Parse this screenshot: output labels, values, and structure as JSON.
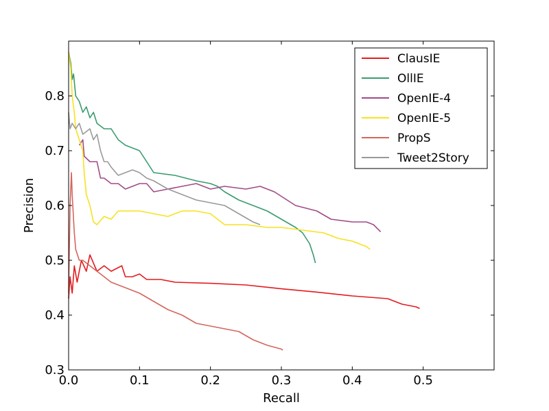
{
  "chart_data": {
    "type": "line",
    "title": "",
    "xlabel": "Recall",
    "ylabel": "Precision",
    "xlim": [
      0.0,
      0.6
    ],
    "ylim": [
      0.3,
      0.9
    ],
    "xticks": [
      0.0,
      0.1,
      0.2,
      0.3,
      0.4,
      0.5
    ],
    "yticks": [
      0.3,
      0.4,
      0.5,
      0.6,
      0.7,
      0.8
    ],
    "xtick_labels": [
      "0.0",
      "0.1",
      "0.2",
      "0.3",
      "0.4",
      "0.5"
    ],
    "ytick_labels": [
      "0.3",
      "0.4",
      "0.5",
      "0.6",
      "0.7",
      "0.8"
    ],
    "grid": false,
    "legend_position": "top-right",
    "series": [
      {
        "name": "ClausIE",
        "color": "#e41a1c",
        "points": [
          [
            0.0,
            0.43
          ],
          [
            0.002,
            0.47
          ],
          [
            0.005,
            0.44
          ],
          [
            0.008,
            0.49
          ],
          [
            0.012,
            0.46
          ],
          [
            0.018,
            0.5
          ],
          [
            0.025,
            0.48
          ],
          [
            0.03,
            0.51
          ],
          [
            0.04,
            0.48
          ],
          [
            0.05,
            0.49
          ],
          [
            0.06,
            0.48
          ],
          [
            0.075,
            0.49
          ],
          [
            0.08,
            0.47
          ],
          [
            0.09,
            0.47
          ],
          [
            0.1,
            0.475
          ],
          [
            0.11,
            0.465
          ],
          [
            0.13,
            0.465
          ],
          [
            0.15,
            0.46
          ],
          [
            0.2,
            0.458
          ],
          [
            0.25,
            0.455
          ],
          [
            0.3,
            0.448
          ],
          [
            0.35,
            0.442
          ],
          [
            0.4,
            0.435
          ],
          [
            0.45,
            0.43
          ],
          [
            0.47,
            0.42
          ],
          [
            0.49,
            0.415
          ],
          [
            0.495,
            0.412
          ]
        ]
      },
      {
        "name": "OllIE",
        "color": "#3a9a6e",
        "points": [
          [
            0.0,
            0.88
          ],
          [
            0.003,
            0.86
          ],
          [
            0.005,
            0.83
          ],
          [
            0.007,
            0.84
          ],
          [
            0.01,
            0.8
          ],
          [
            0.015,
            0.79
          ],
          [
            0.02,
            0.77
          ],
          [
            0.025,
            0.78
          ],
          [
            0.03,
            0.76
          ],
          [
            0.035,
            0.77
          ],
          [
            0.04,
            0.75
          ],
          [
            0.05,
            0.74
          ],
          [
            0.06,
            0.74
          ],
          [
            0.07,
            0.72
          ],
          [
            0.08,
            0.71
          ],
          [
            0.1,
            0.7
          ],
          [
            0.11,
            0.68
          ],
          [
            0.12,
            0.66
          ],
          [
            0.15,
            0.655
          ],
          [
            0.18,
            0.645
          ],
          [
            0.2,
            0.64
          ],
          [
            0.21,
            0.635
          ],
          [
            0.22,
            0.625
          ],
          [
            0.24,
            0.61
          ],
          [
            0.26,
            0.6
          ],
          [
            0.28,
            0.59
          ],
          [
            0.3,
            0.575
          ],
          [
            0.32,
            0.56
          ],
          [
            0.33,
            0.55
          ],
          [
            0.34,
            0.53
          ],
          [
            0.345,
            0.51
          ],
          [
            0.348,
            0.495
          ]
        ]
      },
      {
        "name": "OpenIE-4",
        "color": "#a04a86",
        "points": [
          [
            0.015,
            0.71
          ],
          [
            0.02,
            0.72
          ],
          [
            0.022,
            0.69
          ],
          [
            0.03,
            0.68
          ],
          [
            0.04,
            0.68
          ],
          [
            0.045,
            0.65
          ],
          [
            0.05,
            0.65
          ],
          [
            0.06,
            0.64
          ],
          [
            0.07,
            0.64
          ],
          [
            0.08,
            0.63
          ],
          [
            0.1,
            0.64
          ],
          [
            0.11,
            0.64
          ],
          [
            0.12,
            0.625
          ],
          [
            0.14,
            0.63
          ],
          [
            0.16,
            0.635
          ],
          [
            0.18,
            0.64
          ],
          [
            0.2,
            0.63
          ],
          [
            0.22,
            0.635
          ],
          [
            0.25,
            0.63
          ],
          [
            0.27,
            0.635
          ],
          [
            0.29,
            0.625
          ],
          [
            0.32,
            0.6
          ],
          [
            0.35,
            0.59
          ],
          [
            0.37,
            0.575
          ],
          [
            0.4,
            0.57
          ],
          [
            0.42,
            0.57
          ],
          [
            0.43,
            0.565
          ],
          [
            0.44,
            0.552
          ]
        ]
      },
      {
        "name": "OpenIE-5",
        "color": "#f6e21d",
        "points": [
          [
            0.0,
            0.88
          ],
          [
            0.003,
            0.85
          ],
          [
            0.005,
            0.8
          ],
          [
            0.008,
            0.77
          ],
          [
            0.01,
            0.74
          ],
          [
            0.015,
            0.72
          ],
          [
            0.02,
            0.7
          ],
          [
            0.022,
            0.66
          ],
          [
            0.025,
            0.62
          ],
          [
            0.03,
            0.6
          ],
          [
            0.035,
            0.57
          ],
          [
            0.04,
            0.565
          ],
          [
            0.05,
            0.58
          ],
          [
            0.06,
            0.575
          ],
          [
            0.07,
            0.59
          ],
          [
            0.08,
            0.59
          ],
          [
            0.1,
            0.59
          ],
          [
            0.12,
            0.585
          ],
          [
            0.14,
            0.58
          ],
          [
            0.16,
            0.59
          ],
          [
            0.18,
            0.59
          ],
          [
            0.2,
            0.585
          ],
          [
            0.21,
            0.575
          ],
          [
            0.22,
            0.565
          ],
          [
            0.25,
            0.565
          ],
          [
            0.28,
            0.56
          ],
          [
            0.3,
            0.56
          ],
          [
            0.33,
            0.555
          ],
          [
            0.36,
            0.55
          ],
          [
            0.38,
            0.54
          ],
          [
            0.4,
            0.535
          ],
          [
            0.42,
            0.525
          ],
          [
            0.425,
            0.52
          ]
        ]
      },
      {
        "name": "PropS",
        "color": "#d4655d",
        "points": [
          [
            0.0,
            0.44
          ],
          [
            0.002,
            0.6
          ],
          [
            0.004,
            0.66
          ],
          [
            0.005,
            0.62
          ],
          [
            0.008,
            0.55
          ],
          [
            0.01,
            0.52
          ],
          [
            0.015,
            0.5
          ],
          [
            0.02,
            0.5
          ],
          [
            0.03,
            0.49
          ],
          [
            0.04,
            0.48
          ],
          [
            0.05,
            0.47
          ],
          [
            0.06,
            0.46
          ],
          [
            0.07,
            0.455
          ],
          [
            0.08,
            0.45
          ],
          [
            0.1,
            0.44
          ],
          [
            0.12,
            0.425
          ],
          [
            0.14,
            0.41
          ],
          [
            0.16,
            0.4
          ],
          [
            0.18,
            0.385
          ],
          [
            0.2,
            0.38
          ],
          [
            0.22,
            0.375
          ],
          [
            0.24,
            0.37
          ],
          [
            0.26,
            0.355
          ],
          [
            0.28,
            0.345
          ],
          [
            0.3,
            0.338
          ],
          [
            0.302,
            0.336
          ]
        ]
      },
      {
        "name": "Tweet2Story",
        "color": "#999999",
        "points": [
          [
            0.0,
            0.77
          ],
          [
            0.002,
            0.74
          ],
          [
            0.005,
            0.75
          ],
          [
            0.01,
            0.74
          ],
          [
            0.015,
            0.75
          ],
          [
            0.02,
            0.73
          ],
          [
            0.03,
            0.74
          ],
          [
            0.035,
            0.72
          ],
          [
            0.04,
            0.73
          ],
          [
            0.045,
            0.7
          ],
          [
            0.05,
            0.68
          ],
          [
            0.055,
            0.68
          ],
          [
            0.06,
            0.67
          ],
          [
            0.07,
            0.655
          ],
          [
            0.08,
            0.66
          ],
          [
            0.09,
            0.665
          ],
          [
            0.1,
            0.66
          ],
          [
            0.11,
            0.65
          ],
          [
            0.12,
            0.645
          ],
          [
            0.14,
            0.63
          ],
          [
            0.16,
            0.62
          ],
          [
            0.18,
            0.61
          ],
          [
            0.2,
            0.605
          ],
          [
            0.22,
            0.6
          ],
          [
            0.24,
            0.585
          ],
          [
            0.26,
            0.57
          ],
          [
            0.27,
            0.565
          ]
        ]
      }
    ]
  }
}
